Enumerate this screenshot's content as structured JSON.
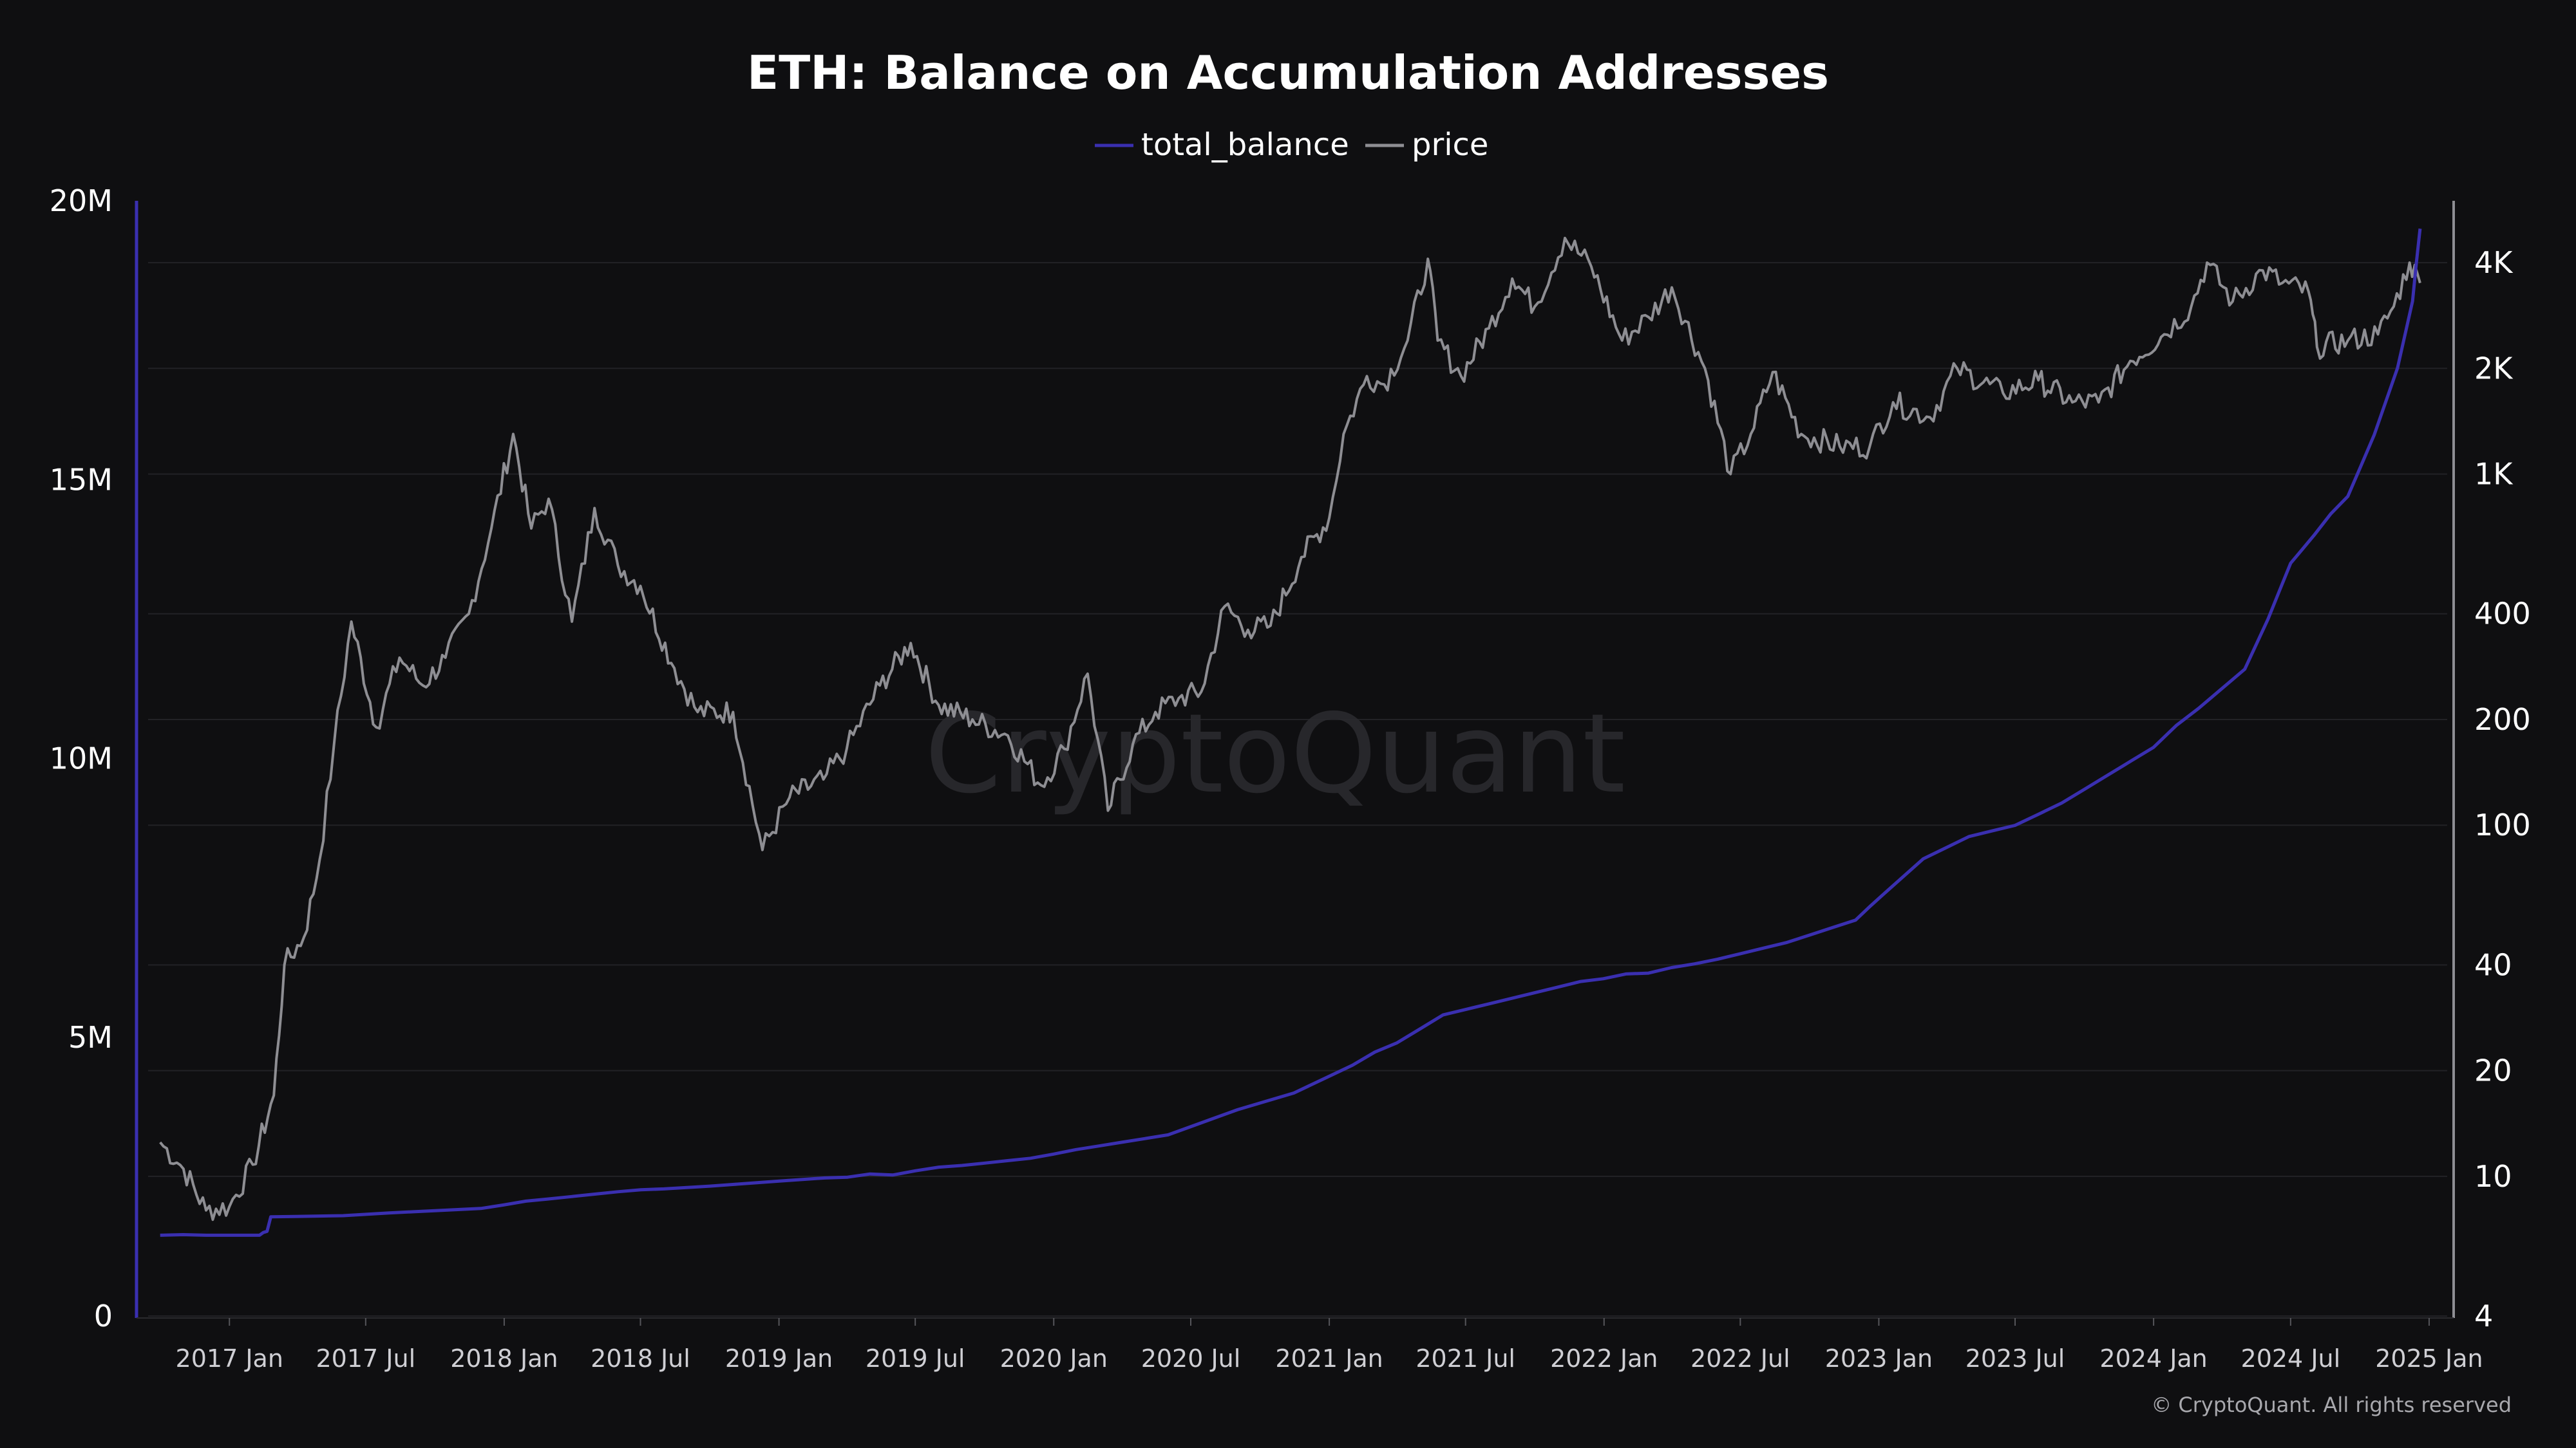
{
  "title": "ETH: Balance on Accumulation Addresses",
  "legend": [
    {
      "label": "total_balance",
      "color": "#3a2fb0"
    },
    {
      "label": "price",
      "color": "#8a8a8f"
    }
  ],
  "watermark": "CryptoQuant",
  "copyright": "© CryptoQuant. All rights reserved",
  "colors": {
    "background": "#0f0f11",
    "balance": "#3a2fb0",
    "price": "#8e8e93",
    "grid": "#222226",
    "left_axis": "#3a2fb0",
    "right_axis": "#8e8e93"
  },
  "chart_data": {
    "type": "line",
    "title": "ETH: Balance on Accumulation Addresses",
    "x_range": [
      "2016-09-15",
      "2025-01-25"
    ],
    "x_ticks": [
      {
        "date": "2017-01-01",
        "label": "2017 Jan"
      },
      {
        "date": "2017-07-01",
        "label": "2017 Jul"
      },
      {
        "date": "2018-01-01",
        "label": "2018 Jan"
      },
      {
        "date": "2018-07-01",
        "label": "2018 Jul"
      },
      {
        "date": "2019-01-01",
        "label": "2019 Jan"
      },
      {
        "date": "2019-07-01",
        "label": "2019 Jul"
      },
      {
        "date": "2020-01-01",
        "label": "2020 Jan"
      },
      {
        "date": "2020-07-01",
        "label": "2020 Jul"
      },
      {
        "date": "2021-01-01",
        "label": "2021 Jan"
      },
      {
        "date": "2021-07-01",
        "label": "2021 Jul"
      },
      {
        "date": "2022-01-01",
        "label": "2022 Jan"
      },
      {
        "date": "2022-07-01",
        "label": "2022 Jul"
      },
      {
        "date": "2023-01-01",
        "label": "2023 Jan"
      },
      {
        "date": "2023-07-01",
        "label": "2023 Jul"
      },
      {
        "date": "2024-01-01",
        "label": "2024 Jan"
      },
      {
        "date": "2024-07-01",
        "label": "2024 Jul"
      },
      {
        "date": "2025-01-01",
        "label": "2025 Jan"
      }
    ],
    "y_left": {
      "label": "",
      "scale": "linear",
      "range": [
        0,
        20000000
      ],
      "ticks": [
        {
          "value": 0,
          "label": "0"
        },
        {
          "value": 5000000,
          "label": "5M"
        },
        {
          "value": 10000000,
          "label": "10M"
        },
        {
          "value": 15000000,
          "label": "15M"
        },
        {
          "value": 20000000,
          "label": "20M"
        }
      ]
    },
    "y_right": {
      "label": "",
      "scale": "log",
      "range": [
        4,
        6000
      ],
      "ticks": [
        {
          "value": 4,
          "label": "4"
        },
        {
          "value": 10,
          "label": "10"
        },
        {
          "value": 20,
          "label": "20"
        },
        {
          "value": 40,
          "label": "40"
        },
        {
          "value": 100,
          "label": "100"
        },
        {
          "value": 200,
          "label": "200"
        },
        {
          "value": 400,
          "label": "400"
        },
        {
          "value": 1000,
          "label": "1K"
        },
        {
          "value": 2000,
          "label": "2K"
        },
        {
          "value": 4000,
          "label": "4K"
        }
      ]
    },
    "grid": true,
    "legend_position": "top-center",
    "series": [
      {
        "name": "total_balance",
        "axis": "left",
        "points": [
          [
            "2016-10-01",
            1450000
          ],
          [
            "2016-12-01",
            1450000
          ],
          [
            "2017-02-10",
            1450000
          ],
          [
            "2017-02-20",
            1520000
          ],
          [
            "2017-02-25",
            1780000
          ],
          [
            "2017-06-01",
            1800000
          ],
          [
            "2017-08-01",
            1850000
          ],
          [
            "2017-12-01",
            1930000
          ],
          [
            "2018-03-01",
            2100000
          ],
          [
            "2018-06-01",
            2230000
          ],
          [
            "2018-10-01",
            2330000
          ],
          [
            "2019-02-01",
            2450000
          ],
          [
            "2019-06-01",
            2530000
          ],
          [
            "2019-09-01",
            2700000
          ],
          [
            "2019-12-01",
            2830000
          ],
          [
            "2020-03-01",
            3050000
          ],
          [
            "2020-06-01",
            3250000
          ],
          [
            "2020-09-01",
            3700000
          ],
          [
            "2020-11-15",
            4000000
          ],
          [
            "2021-02-01",
            4500000
          ],
          [
            "2021-04-01",
            4900000
          ],
          [
            "2021-06-01",
            5400000
          ],
          [
            "2021-09-01",
            5700000
          ],
          [
            "2021-12-01",
            6000000
          ],
          [
            "2022-03-01",
            6150000
          ],
          [
            "2022-06-01",
            6400000
          ],
          [
            "2022-09-01",
            6700000
          ],
          [
            "2022-12-01",
            7100000
          ],
          [
            "2023-01-10",
            7600000
          ],
          [
            "2023-03-01",
            8200000
          ],
          [
            "2023-05-01",
            8600000
          ],
          [
            "2023-07-01",
            8800000
          ],
          [
            "2023-09-01",
            9200000
          ],
          [
            "2023-11-01",
            9700000
          ],
          [
            "2024-01-01",
            10200000
          ],
          [
            "2024-03-01",
            10900000
          ],
          [
            "2024-05-01",
            11600000
          ],
          [
            "2024-06-01",
            12500000
          ],
          [
            "2024-07-01",
            13500000
          ],
          [
            "2024-08-01",
            14000000
          ],
          [
            "2024-09-15",
            14700000
          ],
          [
            "2024-10-20",
            15800000
          ],
          [
            "2024-11-20",
            17000000
          ],
          [
            "2024-12-10",
            18200000
          ],
          [
            "2024-12-20",
            19500000
          ]
        ]
      },
      {
        "name": "price",
        "axis": "right",
        "points": [
          [
            "2016-10-01",
            12.5
          ],
          [
            "2016-11-01",
            10.5
          ],
          [
            "2016-12-01",
            8.0
          ],
          [
            "2017-01-01",
            8.2
          ],
          [
            "2017-02-01",
            10.8
          ],
          [
            "2017-03-01",
            17
          ],
          [
            "2017-03-15",
            40
          ],
          [
            "2017-04-10",
            48
          ],
          [
            "2017-05-01",
            80
          ],
          [
            "2017-05-20",
            170
          ],
          [
            "2017-06-12",
            380
          ],
          [
            "2017-07-15",
            190
          ],
          [
            "2017-08-15",
            300
          ],
          [
            "2017-09-15",
            250
          ],
          [
            "2017-10-15",
            300
          ],
          [
            "2017-11-15",
            400
          ],
          [
            "2017-12-15",
            700
          ],
          [
            "2018-01-13",
            1300
          ],
          [
            "2018-02-06",
            700
          ],
          [
            "2018-03-01",
            850
          ],
          [
            "2018-04-01",
            380
          ],
          [
            "2018-05-01",
            800
          ],
          [
            "2018-06-01",
            550
          ],
          [
            "2018-07-01",
            480
          ],
          [
            "2018-08-15",
            280
          ],
          [
            "2018-09-15",
            210
          ],
          [
            "2018-11-01",
            210
          ],
          [
            "2018-12-10",
            85
          ],
          [
            "2019-01-15",
            120
          ],
          [
            "2019-03-01",
            135
          ],
          [
            "2019-04-01",
            165
          ],
          [
            "2019-05-15",
            250
          ],
          [
            "2019-06-25",
            330
          ],
          [
            "2019-08-01",
            220
          ],
          [
            "2019-09-15",
            200
          ],
          [
            "2019-11-01",
            180
          ],
          [
            "2019-12-15",
            130
          ],
          [
            "2020-01-15",
            165
          ],
          [
            "2020-02-15",
            270
          ],
          [
            "2020-03-13",
            110
          ],
          [
            "2020-04-15",
            170
          ],
          [
            "2020-05-15",
            210
          ],
          [
            "2020-06-15",
            230
          ],
          [
            "2020-07-15",
            240
          ],
          [
            "2020-08-15",
            420
          ],
          [
            "2020-09-15",
            360
          ],
          [
            "2020-10-15",
            370
          ],
          [
            "2020-11-25",
            580
          ],
          [
            "2021-01-01",
            750
          ],
          [
            "2021-01-20",
            1300
          ],
          [
            "2021-02-20",
            1900
          ],
          [
            "2021-03-15",
            1800
          ],
          [
            "2021-04-15",
            2400
          ],
          [
            "2021-05-12",
            4100
          ],
          [
            "2021-05-25",
            2400
          ],
          [
            "2021-06-25",
            1900
          ],
          [
            "2021-08-01",
            2600
          ],
          [
            "2021-09-01",
            3600
          ],
          [
            "2021-10-01",
            3000
          ],
          [
            "2021-11-10",
            4700
          ],
          [
            "2021-12-15",
            3900
          ],
          [
            "2022-01-25",
            2400
          ],
          [
            "2022-03-01",
            2800
          ],
          [
            "2022-04-01",
            3400
          ],
          [
            "2022-05-15",
            2000
          ],
          [
            "2022-06-18",
            1000
          ],
          [
            "2022-07-15",
            1300
          ],
          [
            "2022-08-13",
            1950
          ],
          [
            "2022-09-20",
            1300
          ],
          [
            "2022-11-10",
            1200
          ],
          [
            "2022-12-20",
            1200
          ],
          [
            "2023-01-20",
            1600
          ],
          [
            "2023-03-10",
            1450
          ],
          [
            "2023-04-15",
            2000
          ],
          [
            "2023-06-15",
            1700
          ],
          [
            "2023-08-01",
            1850
          ],
          [
            "2023-09-15",
            1600
          ],
          [
            "2023-10-20",
            1600
          ],
          [
            "2023-12-01",
            2100
          ],
          [
            "2024-01-15",
            2500
          ],
          [
            "2024-02-20",
            3000
          ],
          [
            "2024-03-12",
            4000
          ],
          [
            "2024-04-15",
            3100
          ],
          [
            "2024-05-25",
            3800
          ],
          [
            "2024-06-20",
            3500
          ],
          [
            "2024-07-25",
            3300
          ],
          [
            "2024-08-05",
            2300
          ],
          [
            "2024-09-15",
            2400
          ],
          [
            "2024-10-25",
            2500
          ],
          [
            "2024-11-15",
            3000
          ],
          [
            "2024-12-06",
            4000
          ],
          [
            "2024-12-20",
            3500
          ]
        ]
      }
    ]
  }
}
